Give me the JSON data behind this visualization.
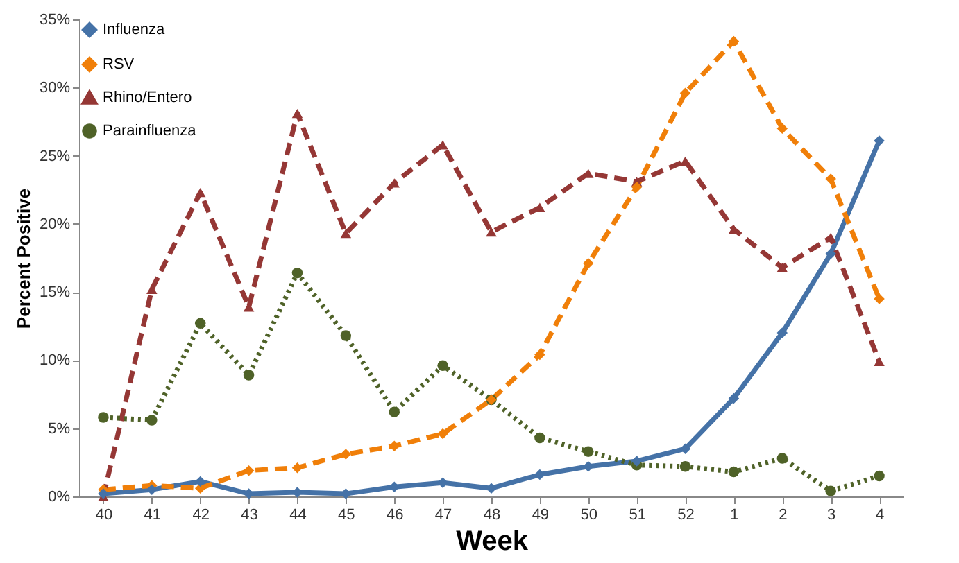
{
  "chart_data": {
    "type": "line",
    "xlabel": "Week",
    "ylabel": "Percent Positive",
    "categories": [
      "40",
      "41",
      "42",
      "43",
      "44",
      "45",
      "46",
      "47",
      "48",
      "49",
      "50",
      "51",
      "52",
      "1",
      "2",
      "3",
      "4"
    ],
    "series": [
      {
        "name": "Influenza",
        "color": "#4572a7",
        "marker": "diamond",
        "line_style": "solid",
        "values": [
          0.2,
          0.5,
          1.1,
          0.2,
          0.3,
          0.2,
          0.7,
          1.0,
          0.6,
          1.6,
          2.2,
          2.6,
          3.5,
          7.2,
          12.0,
          17.8,
          26.1
        ]
      },
      {
        "name": "RSV",
        "color": "#f07f09",
        "marker": "diamond",
        "line_style": "dashed",
        "values": [
          0.5,
          0.8,
          0.6,
          1.9,
          2.1,
          3.1,
          3.7,
          4.6,
          7.1,
          10.4,
          17.1,
          22.7,
          29.6,
          33.4,
          27.0,
          23.3,
          14.5
        ]
      },
      {
        "name": "Rhino/Entero",
        "color": "#953735",
        "marker": "triangle",
        "line_style": "dashed",
        "values": [
          0,
          15.2,
          22.3,
          13.9,
          28.1,
          19.3,
          23.0,
          25.8,
          19.4,
          21.2,
          23.7,
          23.1,
          24.6,
          19.6,
          16.8,
          19.0,
          9.9
        ]
      },
      {
        "name": "Parainfluenza",
        "color": "#4f6228",
        "marker": "circle",
        "line_style": "dotted",
        "values": [
          5.8,
          5.6,
          12.7,
          8.9,
          16.4,
          11.8,
          6.2,
          9.6,
          7.1,
          4.3,
          3.3,
          2.3,
          2.2,
          1.8,
          2.8,
          0.4,
          1.5
        ]
      }
    ],
    "ylim": [
      0,
      35
    ],
    "yticks": [
      {
        "value": 0,
        "label": "0%"
      },
      {
        "value": 5,
        "label": "5%"
      },
      {
        "value": 10,
        "label": "10%"
      },
      {
        "value": 15,
        "label": "15%"
      },
      {
        "value": 20,
        "label": "20%"
      },
      {
        "value": 25,
        "label": "25%"
      },
      {
        "value": 30,
        "label": "30%"
      },
      {
        "value": 35,
        "label": "35%"
      }
    ],
    "grid": false,
    "legend": "top left"
  }
}
